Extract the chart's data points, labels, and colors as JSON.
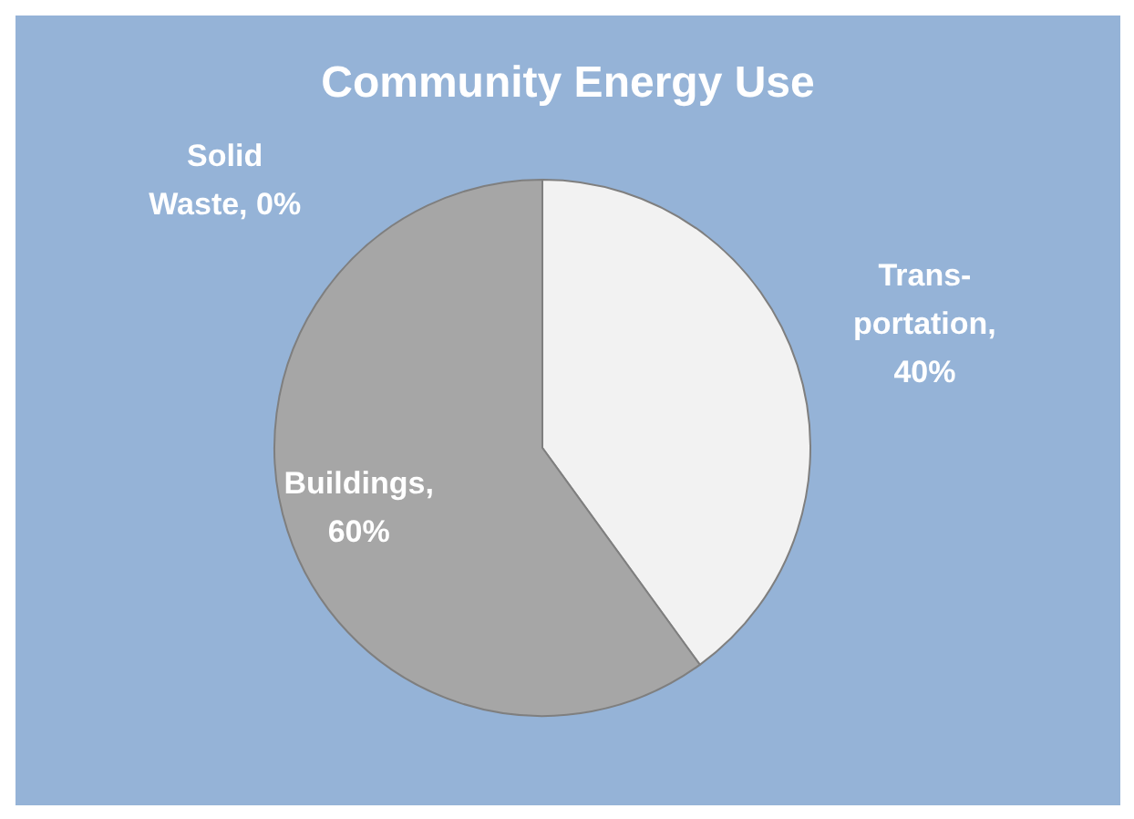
{
  "chart_data": {
    "type": "pie",
    "title": "Community Energy Use",
    "categories": [
      "Trans-\nportation",
      "Buildings",
      "Solid\nWaste"
    ],
    "values": [
      40,
      60,
      0
    ],
    "value_labels": [
      ",\n40%",
      ",\n60%",
      ", 0%"
    ],
    "colors": [
      "#f2f2f2",
      "#a6a6a6",
      "#8c8c8c"
    ]
  }
}
